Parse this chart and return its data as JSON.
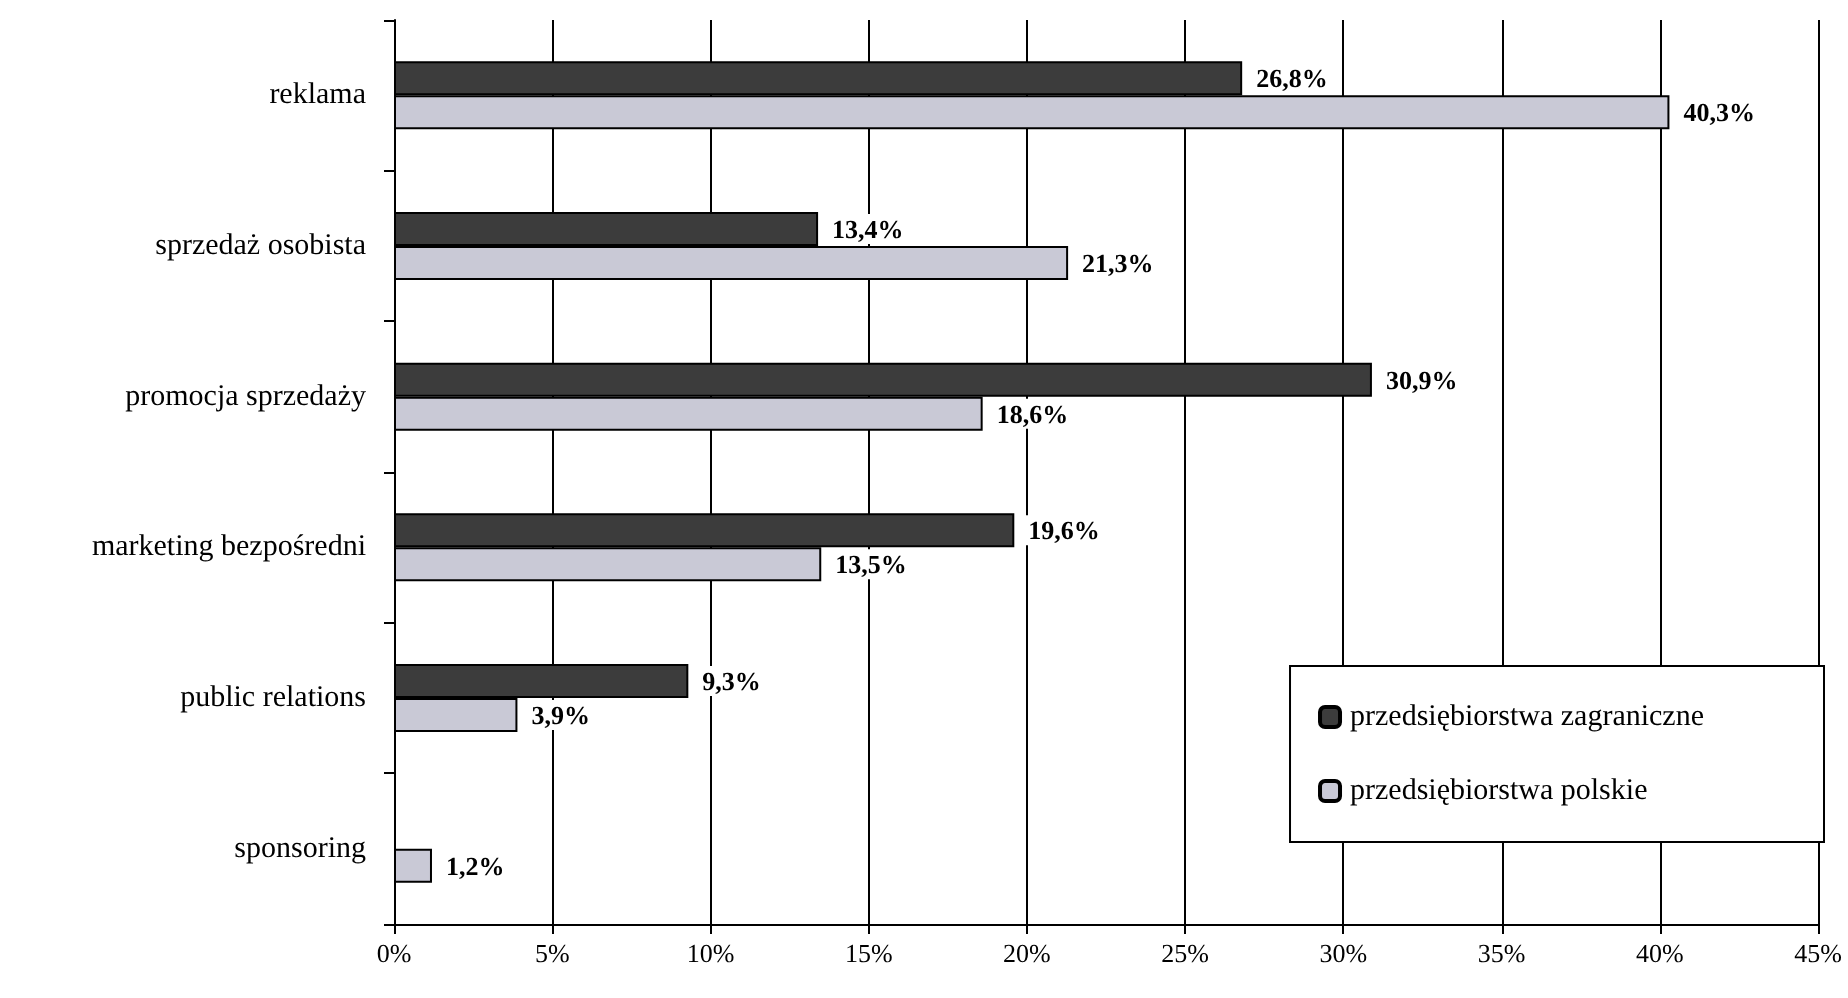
{
  "chart_data": {
    "type": "bar",
    "orientation": "horizontal",
    "categories": [
      "reklama",
      "sprzedaż osobista",
      "promocja sprzedaży",
      "marketing bezpośredni",
      "public relations",
      "sponsoring"
    ],
    "series": [
      {
        "name": "przedsiębiorstwa zagraniczne",
        "color": "#3c3c3c",
        "values": [
          26.8,
          13.4,
          30.9,
          19.6,
          9.3,
          null
        ],
        "value_labels": [
          "26,8%",
          "13,4%",
          "30,9%",
          "19,6%",
          "9,3%",
          null
        ]
      },
      {
        "name": "przedsiębiorstwa polskie",
        "color": "#c9c9d6",
        "values": [
          40.3,
          21.3,
          18.6,
          13.5,
          3.9,
          1.2
        ],
        "value_labels": [
          "40,3%",
          "21,3%",
          "18,6%",
          "13,5%",
          "3,9%",
          "1,2%"
        ]
      }
    ],
    "xlim": [
      0,
      45
    ],
    "xticks": [
      {
        "value": 0,
        "label": "0%"
      },
      {
        "value": 5,
        "label": "5%"
      },
      {
        "value": 10,
        "label": "10%"
      },
      {
        "value": 15,
        "label": "15%"
      },
      {
        "value": 20,
        "label": "20%"
      },
      {
        "value": 25,
        "label": "25%"
      },
      {
        "value": 30,
        "label": "30%"
      },
      {
        "value": 35,
        "label": "35%"
      },
      {
        "value": 40,
        "label": "40%"
      },
      {
        "value": 45,
        "label": "45%"
      }
    ],
    "grid": "x",
    "legend": "bottom right"
  }
}
